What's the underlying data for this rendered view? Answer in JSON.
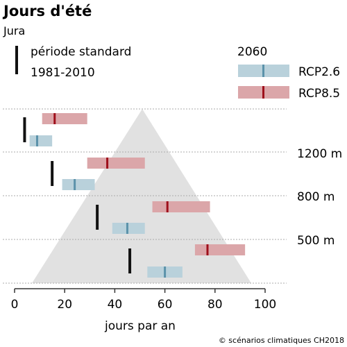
{
  "chart_data": {
    "type": "range-bar",
    "title": "Jours d'été",
    "subtitle": "Jura",
    "xlabel": "jours par an",
    "xlim": [
      0,
      100
    ],
    "x_ticks": [
      0,
      20,
      40,
      60,
      80,
      100
    ],
    "legend": {
      "reference_label_line1": "période standard",
      "reference_label_line2": "1981-2010",
      "scenario_header": "2060",
      "rcp26_label": "RCP2.6",
      "rcp85_label": "RCP8.5"
    },
    "colors": {
      "reference": "#111111",
      "rcp26_band": "#b9d1db",
      "rcp26_median": "#5b92aa",
      "rcp85_band": "#dba6a9",
      "rcp85_median": "#9e0f1b",
      "mountain": "#e1e1e1",
      "grid": "#aaaaaa"
    },
    "altitude_labels": [
      "1200 m",
      "800 m",
      "500 m"
    ],
    "rows": [
      {
        "reference": 4,
        "rcp26": [
          6,
          9,
          15
        ],
        "rcp85": [
          11,
          16,
          29
        ]
      },
      {
        "reference": 15,
        "rcp26": [
          19,
          24,
          32
        ],
        "rcp85": [
          29,
          37,
          52
        ]
      },
      {
        "reference": 33,
        "rcp26": [
          39,
          45,
          52
        ],
        "rcp85": [
          55,
          61,
          78
        ]
      },
      {
        "reference": 46,
        "rcp26": [
          53,
          60,
          67
        ],
        "rcp85": [
          72,
          77,
          92
        ]
      }
    ],
    "credit": "© scénarios climatiques CH2018"
  }
}
